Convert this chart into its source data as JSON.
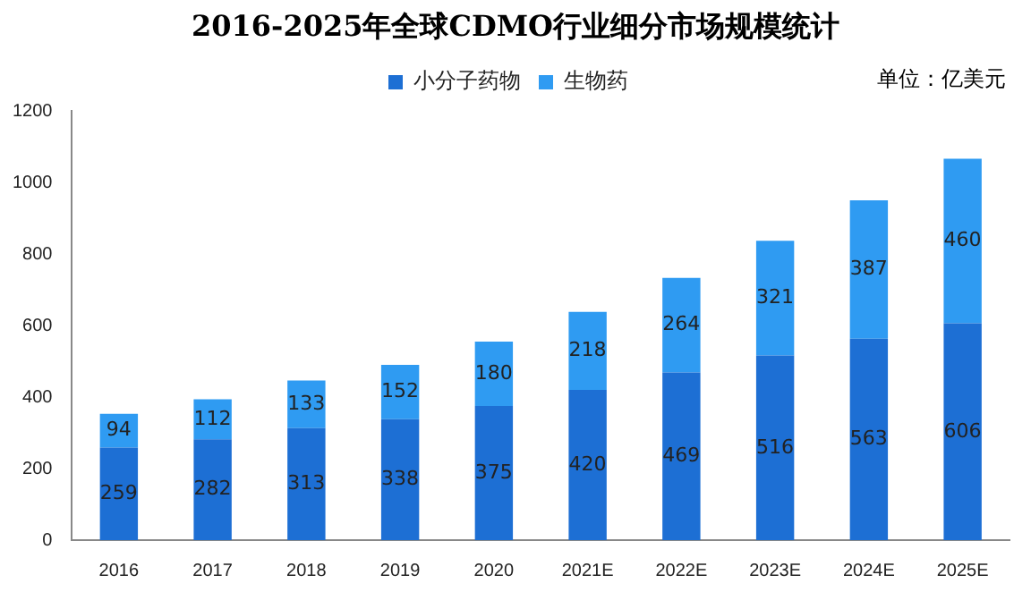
{
  "chart_data": {
    "type": "bar",
    "title": "2016-2025年全球CDMO行业细分市场规模统计",
    "annotations": [
      "单位：亿美元"
    ],
    "categories": [
      "2016",
      "2017",
      "2018",
      "2019",
      "2020",
      "2021E",
      "2022E",
      "2023E",
      "2024E",
      "2025E"
    ],
    "stacked": true,
    "data_labels": true,
    "legend": "top",
    "grid": false,
    "ylim": [
      0,
      1200
    ],
    "yticks": [
      0,
      200,
      400,
      600,
      800,
      1000,
      1200
    ],
    "series": [
      {
        "name": "小分子药物",
        "color": "#1d6fd4",
        "values": [
          259,
          282,
          313,
          338,
          375,
          420,
          469,
          516,
          563,
          606
        ]
      },
      {
        "name": "生物药",
        "color": "#2f9bf2",
        "values": [
          94,
          112,
          133,
          152,
          180,
          218,
          264,
          321,
          387,
          460
        ]
      }
    ]
  }
}
